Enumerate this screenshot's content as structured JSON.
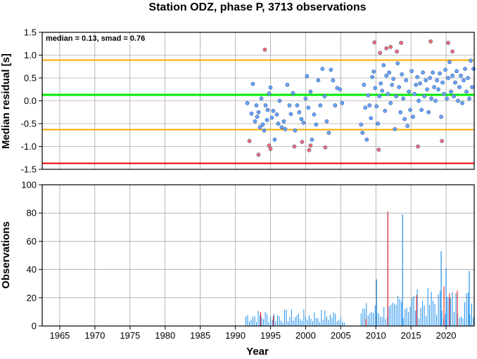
{
  "chart_data": [
    {
      "type": "scatter",
      "title": "Station ODZ, phase P, 3713 observations",
      "xlabel": "",
      "ylabel": "Median residual [s]",
      "annotation": "median = 0.13, smad = 0.76",
      "xlim": [
        1962.5,
        2024.0
      ],
      "ylim": [
        -1.5,
        1.5
      ],
      "yticks": [
        "1.5",
        "1.0",
        "0.5",
        "0.0",
        "-0.5",
        "-1.0",
        "-1.5"
      ],
      "grid": true,
      "colors": {
        "inlier": "#6aa5f5",
        "outlier": "#f56e6e",
        "median_line": "#00ee00",
        "smad_band": "#ffaa00",
        "limit_line": "#ee0000"
      },
      "reference_lines": [
        {
          "role": "median",
          "y": 0.13
        },
        {
          "role": "upper-band",
          "y": 0.89
        },
        {
          "role": "lower-band",
          "y": -0.63
        },
        {
          "role": "lower-limit",
          "y": -1.37
        }
      ],
      "series": [
        {
          "role": "inlier",
          "points": [
            [
              1991.7,
              -0.05
            ],
            [
              1992.3,
              -0.28
            ],
            [
              1992.5,
              0.37
            ],
            [
              1992.8,
              -0.45
            ],
            [
              1993.0,
              -0.1
            ],
            [
              1993.1,
              -0.35
            ],
            [
              1993.3,
              -0.25
            ],
            [
              1993.5,
              -0.58
            ],
            [
              1993.7,
              0.05
            ],
            [
              1993.9,
              -0.52
            ],
            [
              1994.1,
              -0.65
            ],
            [
              1994.3,
              -0.1
            ],
            [
              1994.5,
              -0.42
            ],
            [
              1994.6,
              -0.2
            ],
            [
              1994.8,
              0.16
            ],
            [
              1995.0,
              0.29
            ],
            [
              1995.2,
              -0.37
            ],
            [
              1995.4,
              -0.22
            ],
            [
              1995.6,
              -0.85
            ],
            [
              1995.9,
              -0.3
            ],
            [
              1996.1,
              -0.5
            ],
            [
              1996.3,
              0.0
            ],
            [
              1996.6,
              -0.58
            ],
            [
              1996.9,
              -0.45
            ],
            [
              1997.1,
              -0.62
            ],
            [
              1997.4,
              0.35
            ],
            [
              1997.7,
              -0.1
            ],
            [
              1997.9,
              -0.29
            ],
            [
              1998.2,
              0.17
            ],
            [
              1998.5,
              -0.65
            ],
            [
              1998.8,
              -0.1
            ],
            [
              1999.1,
              -0.25
            ],
            [
              1999.4,
              -0.4
            ],
            [
              1999.7,
              -0.48
            ],
            [
              2000.0,
              0.05
            ],
            [
              2000.2,
              0.54
            ],
            [
              2000.4,
              -0.15
            ],
            [
              2000.7,
              0.2
            ],
            [
              2000.9,
              -0.85
            ],
            [
              2001.2,
              -0.3
            ],
            [
              2001.5,
              -0.52
            ],
            [
              2001.8,
              0.45
            ],
            [
              2002.1,
              -0.1
            ],
            [
              2002.4,
              0.7
            ],
            [
              2002.7,
              0.1
            ],
            [
              2003.0,
              -0.45
            ],
            [
              2003.3,
              -0.7
            ],
            [
              2003.6,
              0.68
            ],
            [
              2003.9,
              0.45
            ],
            [
              2004.2,
              -0.1
            ],
            [
              2004.5,
              0.28
            ],
            [
              2004.9,
              0.25
            ],
            [
              2005.2,
              -0.05
            ],
            [
              2007.9,
              -0.52
            ],
            [
              2008.1,
              -0.7
            ],
            [
              2008.3,
              0.35
            ],
            [
              2008.5,
              -0.15
            ],
            [
              2008.7,
              -0.85
            ],
            [
              2008.9,
              0.12
            ],
            [
              2009.1,
              -0.1
            ],
            [
              2009.3,
              -0.38
            ],
            [
              2009.5,
              0.52
            ],
            [
              2009.7,
              0.64
            ],
            [
              2009.9,
              0.28
            ],
            [
              2010.1,
              -0.12
            ],
            [
              2010.3,
              -0.5
            ],
            [
              2010.5,
              0.1
            ],
            [
              2010.7,
              0.38
            ],
            [
              2010.9,
              0.22
            ],
            [
              2011.1,
              0.78
            ],
            [
              2011.3,
              -0.22
            ],
            [
              2011.5,
              0.55
            ],
            [
              2011.7,
              0.15
            ],
            [
              2011.9,
              0.62
            ],
            [
              2012.1,
              -0.05
            ],
            [
              2012.3,
              0.35
            ],
            [
              2012.5,
              0.48
            ],
            [
              2012.7,
              -0.62
            ],
            [
              2012.9,
              0.1
            ],
            [
              2013.1,
              0.82
            ],
            [
              2013.3,
              0.3
            ],
            [
              2013.5,
              -0.25
            ],
            [
              2013.7,
              0.58
            ],
            [
              2013.9,
              0.05
            ],
            [
              2014.1,
              -0.4
            ],
            [
              2014.3,
              0.45
            ],
            [
              2014.5,
              -0.55
            ],
            [
              2014.7,
              0.2
            ],
            [
              2014.9,
              -0.2
            ],
            [
              2015.1,
              0.65
            ],
            [
              2015.3,
              -0.35
            ],
            [
              2015.5,
              0.15
            ],
            [
              2015.7,
              0.35
            ],
            [
              2015.9,
              0.52
            ],
            [
              2016.1,
              0.0
            ],
            [
              2016.3,
              0.38
            ],
            [
              2016.5,
              -0.2
            ],
            [
              2016.7,
              0.62
            ],
            [
              2016.9,
              0.1
            ],
            [
              2017.1,
              0.45
            ],
            [
              2017.3,
              0.25
            ],
            [
              2017.5,
              -0.25
            ],
            [
              2017.7,
              0.5
            ],
            [
              2017.9,
              0.05
            ],
            [
              2018.1,
              0.62
            ],
            [
              2018.3,
              0.3
            ],
            [
              2018.5,
              0.0
            ],
            [
              2018.7,
              0.45
            ],
            [
              2018.9,
              0.25
            ],
            [
              2019.1,
              0.6
            ],
            [
              2019.3,
              -0.35
            ],
            [
              2019.5,
              0.4
            ],
            [
              2019.7,
              0.15
            ],
            [
              2019.9,
              0.68
            ],
            [
              2020.1,
              0.05
            ],
            [
              2020.3,
              0.5
            ],
            [
              2020.5,
              0.85
            ],
            [
              2020.7,
              0.2
            ],
            [
              2020.9,
              0.55
            ],
            [
              2021.1,
              0.1
            ],
            [
              2021.3,
              0.4
            ],
            [
              2021.5,
              0.65
            ],
            [
              2021.7,
              0.0
            ],
            [
              2021.9,
              0.3
            ],
            [
              2022.1,
              0.55
            ],
            [
              2022.3,
              -0.05
            ],
            [
              2022.5,
              0.45
            ],
            [
              2022.7,
              0.7
            ],
            [
              2022.9,
              0.2
            ],
            [
              2023.1,
              0.5
            ],
            [
              2023.3,
              0.05
            ],
            [
              2023.5,
              0.88
            ],
            [
              2023.7,
              0.3
            ],
            [
              2023.9,
              0.7
            ]
          ]
        },
        {
          "role": "outlier",
          "points": [
            [
              1992.0,
              -0.88
            ],
            [
              1993.3,
              -1.18
            ],
            [
              1994.2,
              1.12
            ],
            [
              1994.8,
              -0.98
            ],
            [
              1995.0,
              -1.05
            ],
            [
              1998.4,
              -1.0
            ],
            [
              1999.5,
              -0.9
            ],
            [
              2000.5,
              -1.08
            ],
            [
              2000.7,
              -0.98
            ],
            [
              2002.8,
              -1.02
            ],
            [
              2009.8,
              1.28
            ],
            [
              2010.4,
              -1.07
            ],
            [
              2010.6,
              1.05
            ],
            [
              2011.5,
              1.15
            ],
            [
              2012.1,
              1.18
            ],
            [
              2013.0,
              1.08
            ],
            [
              2013.6,
              1.27
            ],
            [
              2016.0,
              -1.0
            ],
            [
              2017.8,
              1.3
            ],
            [
              2019.4,
              -0.88
            ],
            [
              2020.3,
              1.27
            ],
            [
              2020.9,
              1.08
            ]
          ]
        }
      ]
    },
    {
      "type": "bar",
      "title": "",
      "xlabel": "Year",
      "ylabel": "Observations",
      "xlim": [
        1962.5,
        2024.0
      ],
      "ylim": [
        0,
        100
      ],
      "yticks": [
        "100",
        "80",
        "60",
        "40",
        "20",
        "0"
      ],
      "xticks": [
        "1965",
        "1970",
        "1975",
        "1980",
        "1985",
        "1990",
        "1995",
        "2000",
        "2005",
        "2010",
        "2015",
        "2020"
      ],
      "grid": true,
      "colors": {
        "inlier": "#1e90ee",
        "outlier": "#ee3030"
      },
      "series": [
        {
          "role": "daily-counts",
          "x": [
            1991.5,
            2005.6,
            2007.9,
            2024.0
          ],
          "period": 0.25,
          "typical_max": 27
        },
        {
          "role": "peaks",
          "points": [
            [
              2010.1,
              33
            ],
            [
              2011.7,
              81
            ],
            [
              2013.8,
              79
            ],
            [
              2019.3,
              53
            ],
            [
              2020.0,
              41
            ],
            [
              2023.3,
              39
            ]
          ]
        },
        {
          "role": "outlier-bars",
          "points": [
            [
              1993.6,
              10
            ],
            [
              1995.4,
              7
            ],
            [
              2008.6,
              5
            ],
            [
              2011.7,
              81
            ],
            [
              2015.8,
              22
            ],
            [
              2019.7,
              28
            ],
            [
              2020.5,
              23
            ],
            [
              2021.6,
              25
            ]
          ]
        }
      ]
    }
  ]
}
